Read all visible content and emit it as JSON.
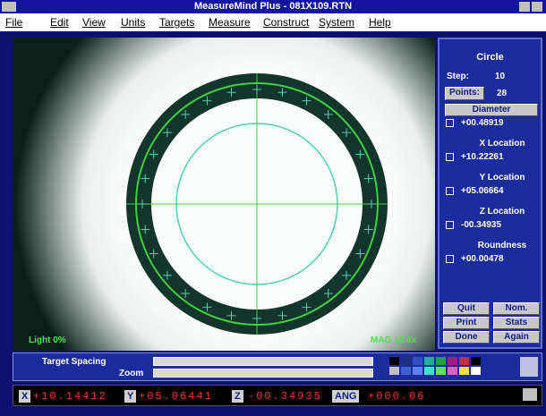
{
  "window": {
    "title": "MeasureMind Plus - 081X109.RTN"
  },
  "menu": [
    "File",
    "Edit",
    "View",
    "Units",
    "Targets",
    "Measure",
    "Construct",
    "System",
    "Help"
  ],
  "viewport": {
    "light": "Light  0%",
    "mag": "MAG 10.6x"
  },
  "panel": {
    "feature": "Circle",
    "step_label": "Step:",
    "step": "10",
    "points_label": "Points:",
    "points": "28",
    "results": [
      {
        "label": "Diameter",
        "value": "+00.48919"
      },
      {
        "label": "X Location",
        "value": "+10.22261"
      },
      {
        "label": "Y Location",
        "value": "+05.06664"
      },
      {
        "label": "Z Location",
        "value": "-00.34935"
      },
      {
        "label": "Roundness",
        "value": "+00.00478"
      }
    ],
    "buttons": [
      "Quit",
      "Nom.",
      "Print",
      "Stats",
      "Done",
      "Again"
    ]
  },
  "controls": {
    "target_spacing": "Target Spacing",
    "zoom": "Zoom"
  },
  "status": [
    {
      "label": "X",
      "value": "+10.14412"
    },
    {
      "label": "Y",
      "value": "+05.06441"
    },
    {
      "label": "Z",
      "value": "-00.34935"
    },
    {
      "label": "ANG",
      "value": "+000.06"
    }
  ]
}
